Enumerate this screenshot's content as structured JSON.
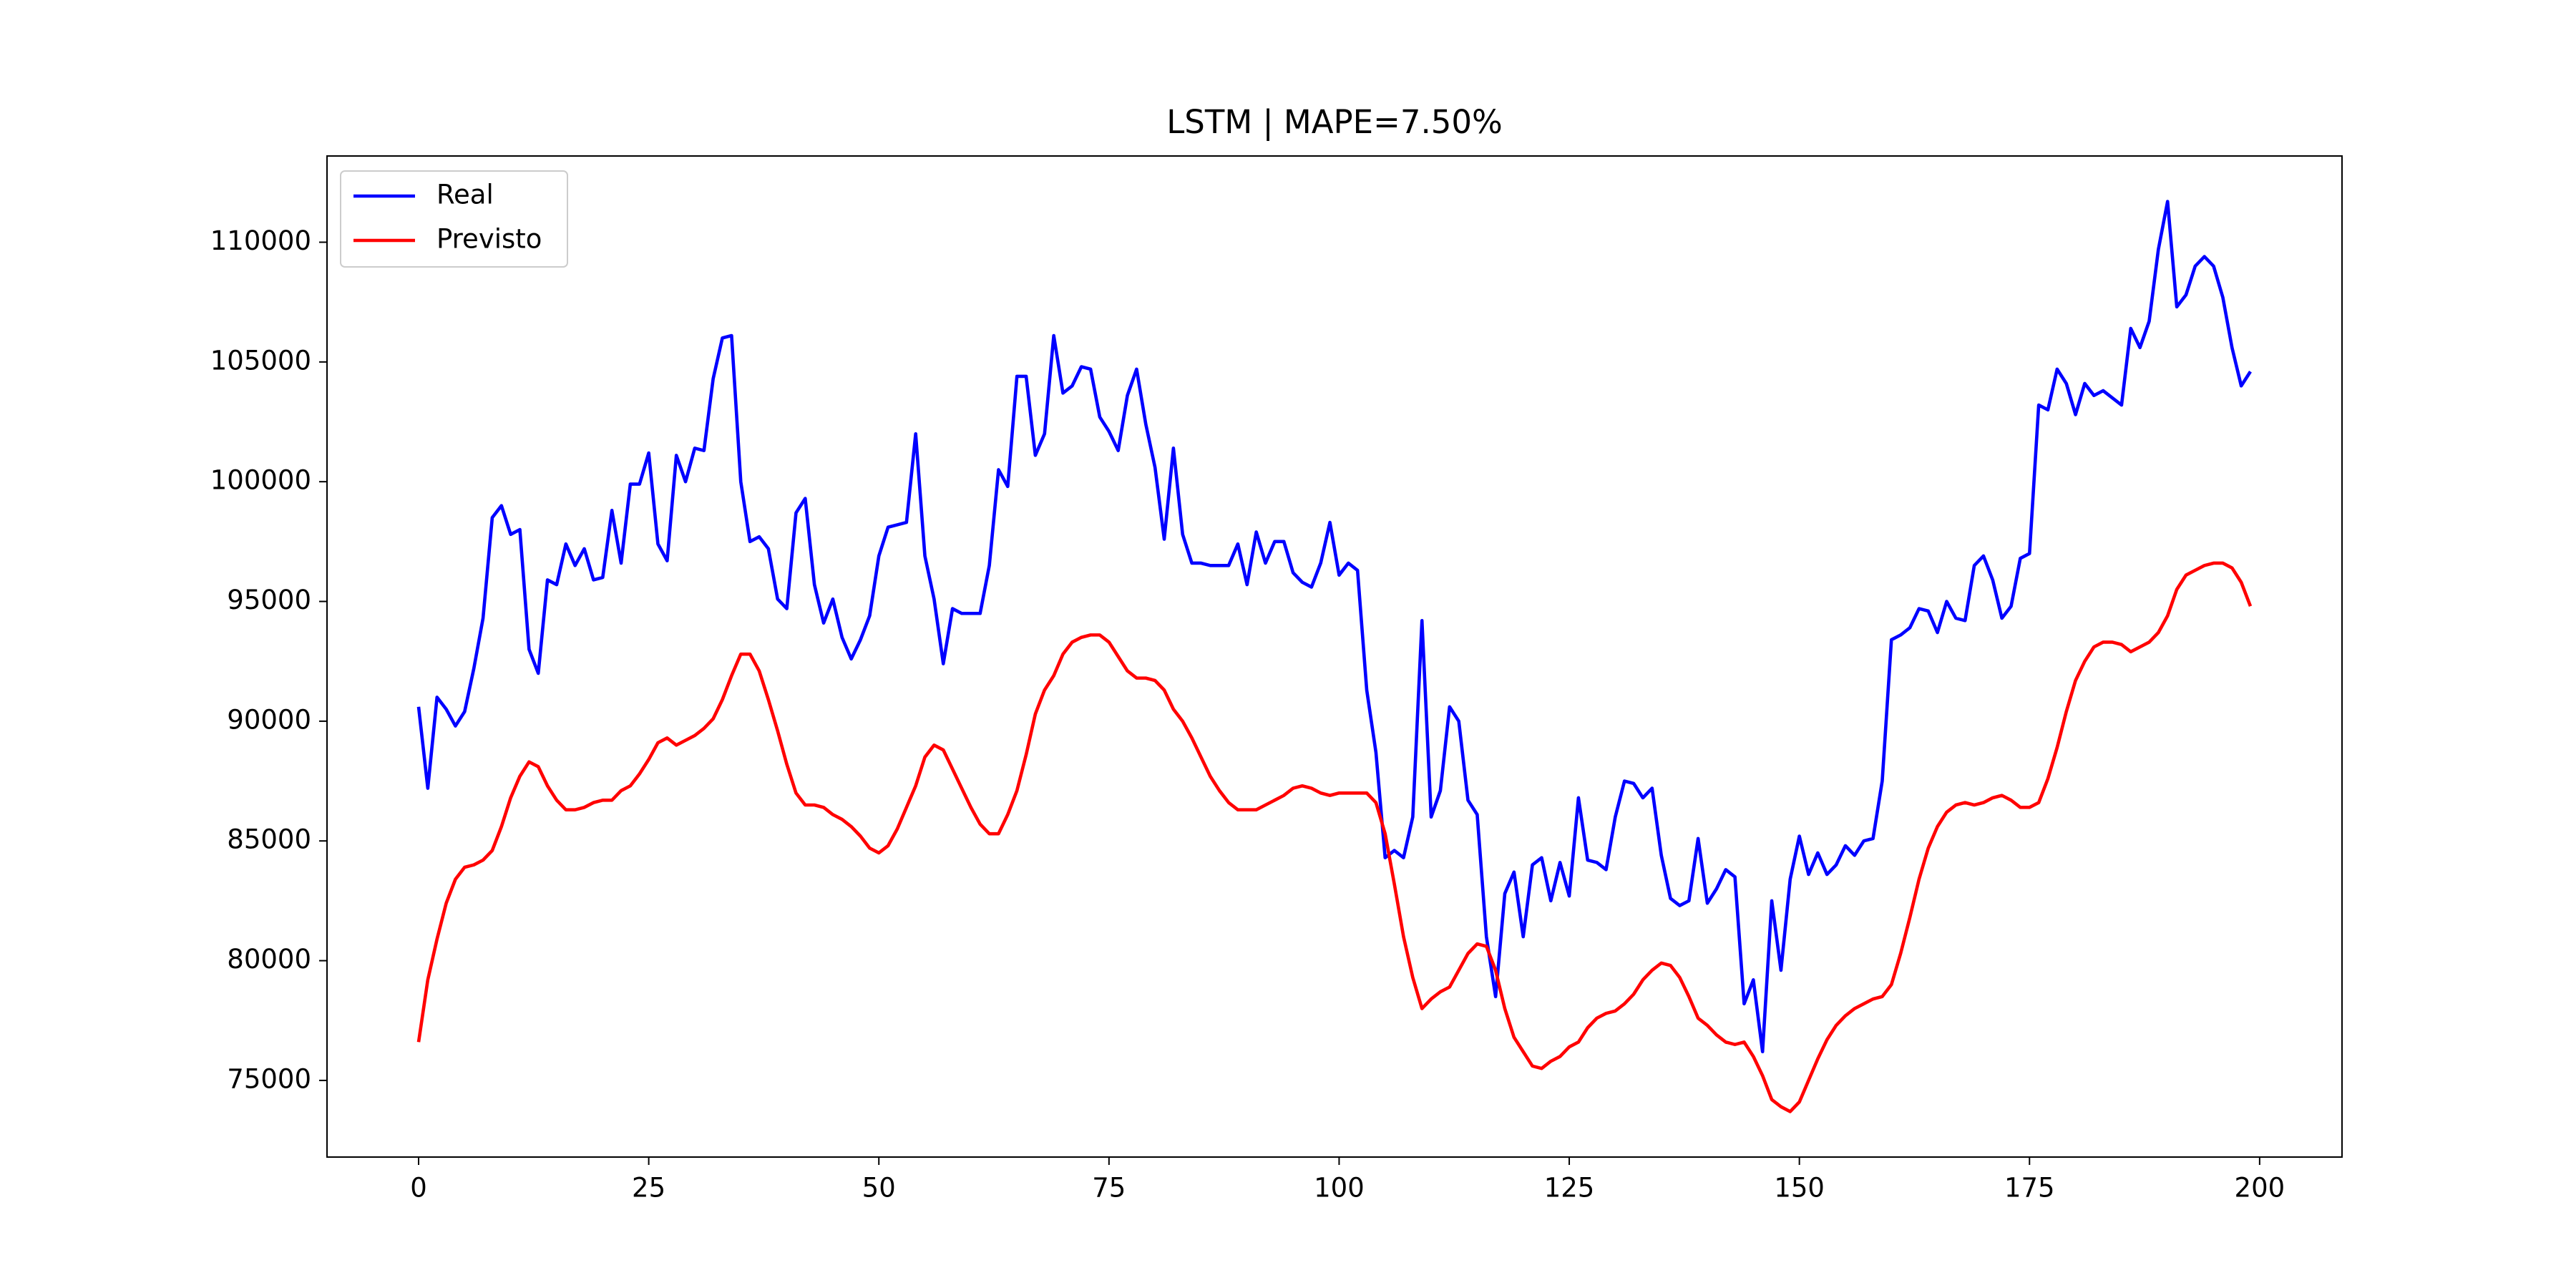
{
  "chart_data": {
    "type": "line",
    "title": "LSTM | MAPE=7.50%",
    "x": [
      0,
      1,
      2,
      3,
      4,
      5,
      6,
      7,
      8,
      9,
      10,
      11,
      12,
      13,
      14,
      15,
      16,
      17,
      18,
      19,
      20,
      21,
      22,
      23,
      24,
      25,
      26,
      27,
      28,
      29,
      30,
      31,
      32,
      33,
      34,
      35,
      36,
      37,
      38,
      39,
      40,
      41,
      42,
      43,
      44,
      45,
      46,
      47,
      48,
      49,
      50,
      51,
      52,
      53,
      54,
      55,
      56,
      57,
      58,
      59,
      60,
      61,
      62,
      63,
      64,
      65,
      66,
      67,
      68,
      69,
      70,
      71,
      72,
      73,
      74,
      75,
      76,
      77,
      78,
      79,
      80,
      81,
      82,
      83,
      84,
      85,
      86,
      87,
      88,
      89,
      90,
      91,
      92,
      93,
      94,
      95,
      96,
      97,
      98,
      99,
      100,
      101,
      102,
      103,
      104,
      105,
      106,
      107,
      108,
      109,
      110,
      111,
      112,
      113,
      114,
      115,
      116,
      117,
      118,
      119,
      120,
      121,
      122,
      123,
      124,
      125,
      126,
      127,
      128,
      129,
      130,
      131,
      132,
      133,
      134,
      135,
      136,
      137,
      138,
      139,
      140,
      141,
      142,
      143,
      144,
      145,
      146,
      147,
      148,
      149,
      150,
      151,
      152,
      153,
      154,
      155,
      156,
      157,
      158,
      159,
      160,
      161,
      162,
      163,
      164,
      165,
      166,
      167,
      168,
      169,
      170,
      171,
      172,
      173,
      174,
      175,
      176,
      177,
      178,
      179,
      180,
      181,
      182,
      183,
      184,
      185,
      186,
      187,
      188,
      189,
      190,
      191,
      192,
      193,
      194,
      195,
      196,
      197,
      198,
      199
    ],
    "series": [
      {
        "name": "Real",
        "color": "#0000ff",
        "values": [
          90600,
          87200,
          91000,
          90500,
          89800,
          90400,
          92200,
          94300,
          98500,
          99000,
          97800,
          98000,
          93000,
          92000,
          95900,
          95700,
          97400,
          96500,
          97200,
          95900,
          96000,
          98800,
          96600,
          99900,
          99900,
          101200,
          97400,
          96700,
          101100,
          100000,
          101400,
          101300,
          104300,
          106000,
          106100,
          100000,
          97500,
          97700,
          97200,
          95100,
          94700,
          98700,
          99300,
          95700,
          94100,
          95100,
          93500,
          92600,
          93400,
          94400,
          96900,
          98100,
          98200,
          98300,
          102000,
          96900,
          95100,
          92400,
          94700,
          94500,
          94500,
          94500,
          96500,
          100500,
          99800,
          104400,
          104400,
          101100,
          102000,
          106100,
          103700,
          104000,
          104800,
          104700,
          102700,
          102100,
          101300,
          103600,
          104700,
          102400,
          100600,
          97600,
          101400,
          97800,
          96600,
          96600,
          96500,
          96500,
          96500,
          97400,
          95700,
          97900,
          96600,
          97500,
          97500,
          96200,
          95800,
          95600,
          96600,
          98300,
          96100,
          96600,
          96300,
          91300,
          88700,
          84300,
          84600,
          84300,
          86000,
          94200,
          86000,
          87100,
          90600,
          90000,
          86700,
          86100,
          81000,
          78500,
          82800,
          83700,
          81000,
          84000,
          84300,
          82500,
          84100,
          82700,
          86800,
          84200,
          84100,
          83800,
          86000,
          87500,
          87400,
          86800,
          87200,
          84400,
          82600,
          82300,
          82500,
          85100,
          82400,
          83000,
          83800,
          83500,
          78200,
          79200,
          76200,
          82500,
          79600,
          83400,
          85200,
          83600,
          84500,
          83600,
          84000,
          84800,
          84400,
          85000,
          85100,
          87500,
          93400,
          93600,
          93900,
          94700,
          94600,
          93700,
          95000,
          94300,
          94200,
          96500,
          96900,
          95900,
          94300,
          94800,
          96800,
          97000,
          103200,
          103000,
          104700,
          104100,
          102800,
          104100,
          103600,
          103800,
          103500,
          103200,
          106400,
          105600,
          106700,
          109700,
          111700,
          107300,
          107800,
          109000,
          109400,
          109000,
          107700,
          105600,
          104000,
          104600
        ]
      },
      {
        "name": "Previsto",
        "color": "#ff0000",
        "values": [
          76600,
          79200,
          80900,
          82400,
          83400,
          83900,
          84000,
          84200,
          84600,
          85600,
          86800,
          87700,
          88300,
          88100,
          87300,
          86700,
          86300,
          86300,
          86400,
          86600,
          86700,
          86700,
          87100,
          87300,
          87800,
          88400,
          89100,
          89300,
          89000,
          89200,
          89400,
          89700,
          90100,
          90900,
          91900,
          92800,
          92800,
          92100,
          90900,
          89600,
          88200,
          87000,
          86500,
          86500,
          86400,
          86100,
          85900,
          85600,
          85200,
          84700,
          84500,
          84800,
          85500,
          86400,
          87300,
          88500,
          89000,
          88800,
          88000,
          87200,
          86400,
          85700,
          85300,
          85300,
          86100,
          87100,
          88600,
          90300,
          91300,
          91900,
          92800,
          93300,
          93500,
          93600,
          93600,
          93300,
          92700,
          92100,
          91800,
          91800,
          91700,
          91300,
          90500,
          90000,
          89300,
          88500,
          87700,
          87100,
          86600,
          86300,
          86300,
          86300,
          86500,
          86700,
          86900,
          87200,
          87300,
          87200,
          87000,
          86900,
          87000,
          87000,
          87000,
          87000,
          86600,
          85300,
          83200,
          81000,
          79300,
          78000,
          78400,
          78700,
          78900,
          79600,
          80300,
          80700,
          80600,
          79600,
          78000,
          76800,
          76200,
          75600,
          75500,
          75800,
          76000,
          76400,
          76600,
          77200,
          77600,
          77800,
          77900,
          78200,
          78600,
          79200,
          79600,
          79900,
          79800,
          79300,
          78500,
          77600,
          77300,
          76900,
          76600,
          76500,
          76600,
          76000,
          75200,
          74200,
          73900,
          73700,
          74100,
          75000,
          75900,
          76700,
          77300,
          77700,
          78000,
          78200,
          78400,
          78500,
          79000,
          80300,
          81800,
          83400,
          84700,
          85600,
          86200,
          86500,
          86600,
          86500,
          86600,
          86800,
          86900,
          86700,
          86400,
          86400,
          86600,
          87600,
          88900,
          90400,
          91700,
          92500,
          93100,
          93300,
          93300,
          93200,
          92900,
          93100,
          93300,
          93700,
          94400,
          95500,
          96100,
          96300,
          96500,
          96600,
          96600,
          96400,
          95800,
          94800
        ]
      }
    ],
    "xlim": [
      -9.95,
      208.95
    ],
    "xticks": [
      0,
      25,
      50,
      75,
      100,
      125,
      150,
      175,
      200
    ],
    "ylim": [
      71800,
      113600
    ],
    "yticks": [
      75000,
      80000,
      85000,
      90000,
      95000,
      100000,
      105000,
      110000
    ],
    "legend": "upper left"
  }
}
